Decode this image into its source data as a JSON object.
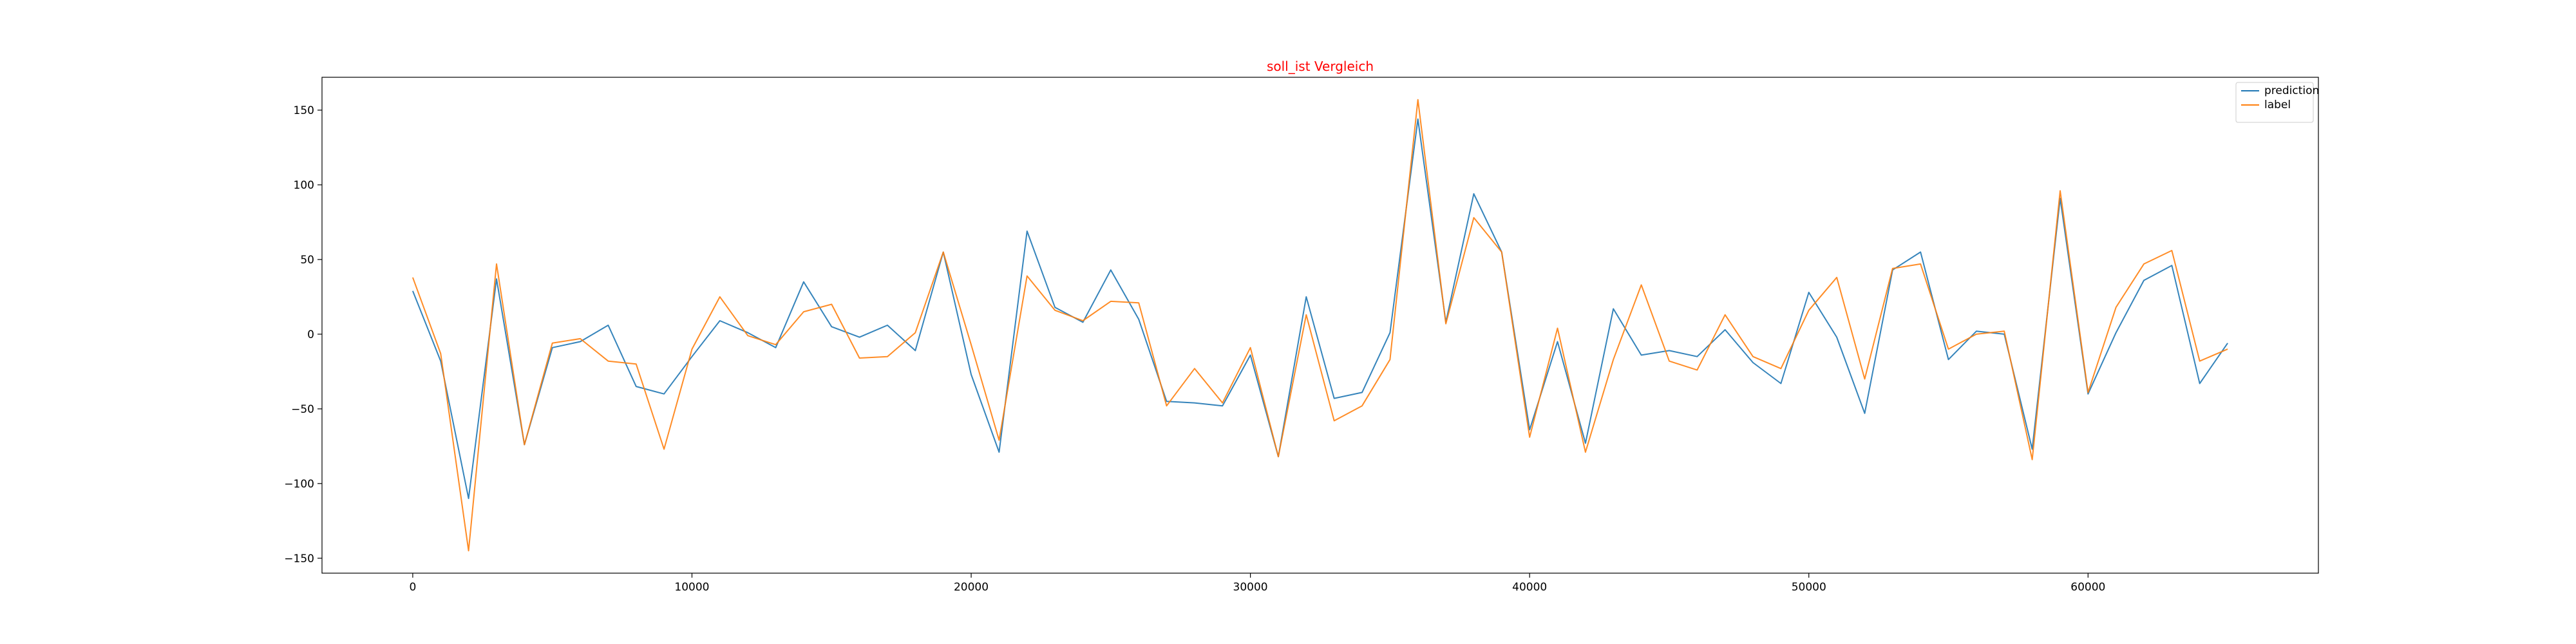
{
  "chart_data": {
    "type": "line",
    "title": "soll_ist Vergleich",
    "title_color": "#ff0000",
    "xlabel": "",
    "ylabel": "",
    "xlim": [
      -3250,
      68250
    ],
    "ylim": [
      -160,
      172
    ],
    "xticks": [
      0,
      10000,
      20000,
      30000,
      40000,
      50000,
      60000
    ],
    "yticks": [
      -150,
      -100,
      -50,
      0,
      50,
      100,
      150
    ],
    "grid": false,
    "legend_position": "top-right",
    "x": [
      0,
      1000,
      2000,
      3000,
      4000,
      5000,
      6000,
      7000,
      8000,
      9000,
      10000,
      11000,
      12000,
      13000,
      14000,
      15000,
      16000,
      17000,
      18000,
      19000,
      20000,
      21000,
      22000,
      23000,
      24000,
      25000,
      26000,
      27000,
      28000,
      29000,
      30000,
      31000,
      32000,
      33000,
      34000,
      35000,
      36000,
      37000,
      38000,
      39000,
      40000,
      41000,
      42000,
      43000,
      44000,
      45000,
      46000,
      47000,
      48000,
      49000,
      50000,
      51000,
      52000,
      53000,
      54000,
      55000,
      56000,
      57000,
      58000,
      59000,
      60000,
      61000,
      62000,
      63000,
      64000,
      65000
    ],
    "series": [
      {
        "name": "prediction",
        "color": "#1f77b4",
        "values": [
          29,
          -18,
          -110,
          37,
          -74,
          -9,
          -5,
          6,
          -35,
          -40,
          -15,
          9,
          1,
          -9,
          35,
          5,
          -2,
          6,
          -11,
          55,
          -27,
          -79,
          69,
          18,
          8,
          43,
          10,
          -45,
          -46,
          -48,
          -14,
          -82,
          25,
          -43,
          -39,
          1,
          144,
          8,
          94,
          55,
          -64,
          -5,
          -73,
          17,
          -14,
          -11,
          -15,
          3,
          -19,
          -33,
          28,
          -2,
          -53,
          43,
          55,
          -17,
          2,
          0,
          -77,
          91,
          -40,
          1,
          36,
          46,
          -33,
          -6
        ]
      },
      {
        "name": "label",
        "color": "#ff7f0e",
        "values": [
          38,
          -13,
          -145,
          47,
          -74,
          -6,
          -3,
          -18,
          -20,
          -77,
          -10,
          25,
          -1,
          -7,
          15,
          20,
          -16,
          -15,
          1,
          55,
          -7,
          -71,
          39,
          16,
          9,
          22,
          21,
          -48,
          -23,
          -46,
          -9,
          -82,
          13,
          -58,
          -48,
          -17,
          157,
          7,
          78,
          55,
          -69,
          4,
          -79,
          -17,
          33,
          -18,
          -24,
          13,
          -15,
          -23,
          16,
          38,
          -30,
          44,
          47,
          -10,
          0,
          2,
          -84,
          96,
          -39,
          18,
          47,
          56,
          -18,
          -10
        ]
      }
    ]
  }
}
